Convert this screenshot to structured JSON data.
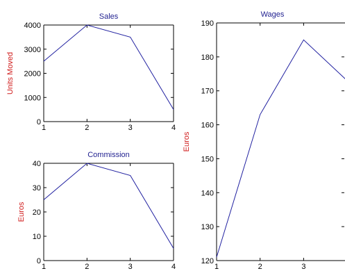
{
  "colors": {
    "title": "#1f1f8f",
    "ylabel": "#d01c1c",
    "line": "#2020a0",
    "axis": "#000000"
  },
  "chart_data": [
    {
      "type": "line",
      "title": "Sales",
      "xlabel": "",
      "ylabel": "Units Moved",
      "x": [
        1,
        2,
        3,
        4
      ],
      "series": [
        {
          "values": [
            2500,
            4000,
            3500,
            500
          ]
        }
      ],
      "xlim": [
        1,
        4
      ],
      "ylim": [
        0,
        4000
      ],
      "xticks": [
        "1",
        "2",
        "3",
        "4"
      ],
      "yticks": [
        "0",
        "1000",
        "2000",
        "3000",
        "4000"
      ],
      "grid": false
    },
    {
      "type": "line",
      "title": "Commission",
      "xlabel": "",
      "ylabel": "Euros",
      "x": [
        1,
        2,
        3,
        4
      ],
      "series": [
        {
          "values": [
            25,
            40,
            35,
            5
          ]
        }
      ],
      "xlim": [
        1,
        4
      ],
      "ylim": [
        0,
        40
      ],
      "xticks": [
        "1",
        "2",
        "3",
        "4"
      ],
      "yticks": [
        "0",
        "10",
        "20",
        "30",
        "40"
      ],
      "grid": false
    },
    {
      "type": "line",
      "title": "Wages",
      "xlabel": "",
      "ylabel": "Euros",
      "x": [
        1,
        2,
        3,
        4
      ],
      "series": [
        {
          "values": [
            121,
            163,
            185,
            173
          ]
        }
      ],
      "xlim": [
        1,
        4
      ],
      "ylim": [
        120,
        190
      ],
      "xticks": [
        "1",
        "2",
        "3"
      ],
      "yticks": [
        "120",
        "130",
        "140",
        "150",
        "160",
        "170",
        "180",
        "190"
      ],
      "grid": false
    }
  ]
}
